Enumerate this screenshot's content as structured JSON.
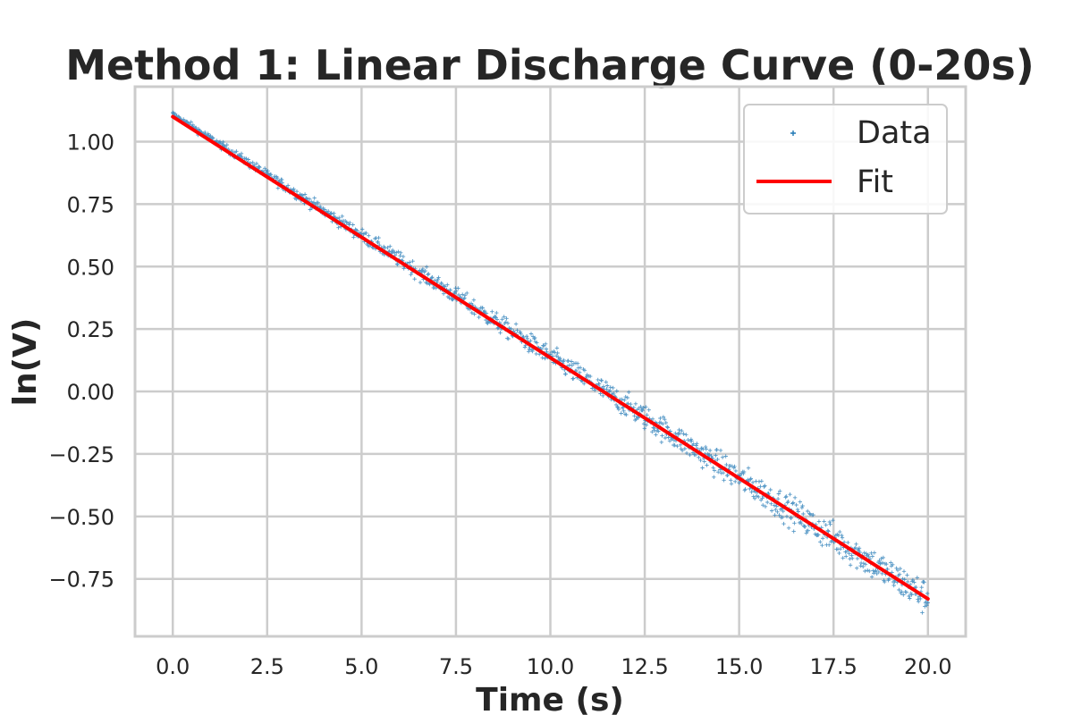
{
  "chart_data": {
    "type": "scatter",
    "title": "Method 1: Linear Discharge Curve (0-20s)",
    "xlabel": "Time (s)",
    "ylabel": "ln(V)",
    "xlim": [
      -1.0,
      21.0
    ],
    "ylim": [
      -0.98,
      1.22
    ],
    "xticks": [
      "0.0",
      "2.5",
      "5.0",
      "7.5",
      "10.0",
      "12.5",
      "15.0",
      "17.5",
      "20.0"
    ],
    "yticks": [
      "−0.75",
      "−0.50",
      "−0.25",
      "0.00",
      "0.25",
      "0.50",
      "0.75",
      "1.00"
    ],
    "grid": true,
    "legend_position": "top-right",
    "series": [
      {
        "name": "Data",
        "kind": "scatter",
        "marker": "+",
        "color": "#1f77b4",
        "x_range": [
          0.0,
          20.0
        ],
        "y_start": 1.11,
        "y_end": -0.83,
        "noise_start": 0.006,
        "noise_end": 0.035,
        "points_shown": 1200
      },
      {
        "name": "Fit",
        "kind": "line",
        "color": "#ff0000",
        "x": [
          0.0,
          20.0
        ],
        "y": [
          1.1,
          -0.83
        ]
      }
    ]
  }
}
